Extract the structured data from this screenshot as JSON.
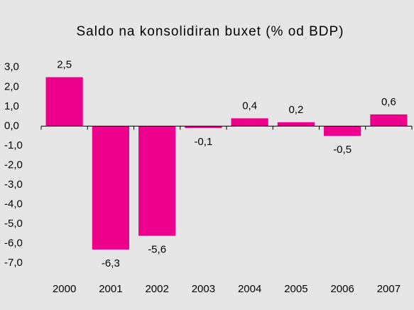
{
  "chart_data": {
    "type": "bar",
    "title": "Saldo na konsolidiran buxet (% od BDP)",
    "categories": [
      "2000",
      "2001",
      "2002",
      "2003",
      "2004",
      "2005",
      "2006",
      "2007"
    ],
    "values": [
      2.5,
      -6.3,
      -5.6,
      -0.1,
      0.4,
      0.2,
      -0.5,
      0.6
    ],
    "value_labels": [
      "2,5",
      "-6,3",
      "-5,6",
      "-0,1",
      "0,4",
      "0,2",
      "-0,5",
      "0,6"
    ],
    "color": "#ec008c",
    "ylim": [
      -7.5,
      3.5
    ],
    "yticks": [
      {
        "value": 3,
        "label": "3,0"
      },
      {
        "value": 2,
        "label": "2,0"
      },
      {
        "value": 1,
        "label": "1,0"
      },
      {
        "value": 0,
        "label": "0,0"
      },
      {
        "value": -1,
        "label": "-1,0"
      },
      {
        "value": -2,
        "label": "-2,0"
      },
      {
        "value": -3,
        "label": "-3,0"
      },
      {
        "value": -4,
        "label": "-4,0"
      },
      {
        "value": -5,
        "label": "-5,0"
      },
      {
        "value": -6,
        "label": "-6,0"
      },
      {
        "value": -7,
        "label": "-7,0"
      }
    ],
    "grid": false
  }
}
